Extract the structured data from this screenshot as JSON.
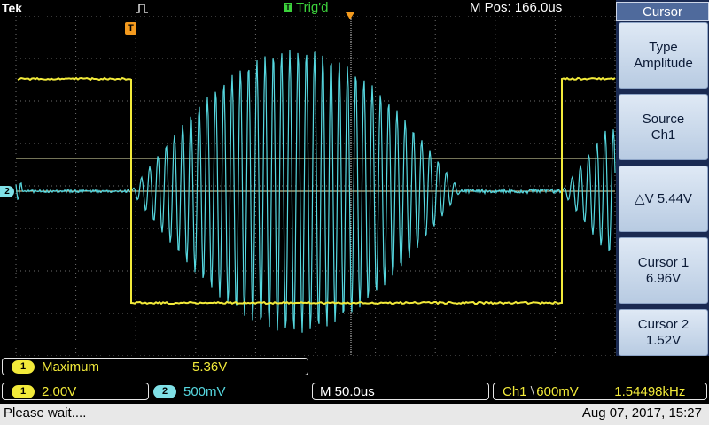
{
  "header": {
    "brand": "Tek",
    "trigger_status": "Trig'd",
    "trigger_status_badge": "T",
    "m_pos": "M Pos: 166.0us",
    "trigger_position_badge": "T",
    "ch2_marker": "2"
  },
  "sidebar": {
    "title": "Cursor",
    "buttons": [
      {
        "line1": "Type",
        "line2": "Amplitude"
      },
      {
        "line1": "Source",
        "line2": "Ch1"
      },
      {
        "line1": "△V 5.44V",
        "line2": ""
      },
      {
        "line1": "Cursor 1",
        "line2": "6.96V"
      },
      {
        "line1": "Cursor 2",
        "line2": "1.52V"
      }
    ]
  },
  "measurement": {
    "channel": "1",
    "name": "Maximum",
    "value": "5.36V"
  },
  "settings": {
    "ch1_badge": "1",
    "ch1_scale": "2.00V",
    "ch2_badge": "2",
    "ch2_scale": "500mV",
    "timebase": "M 50.0us",
    "trigger_source": "Ch1",
    "trigger_slope": "⧵",
    "trigger_level": "600mV",
    "frequency": "1.54498kHz"
  },
  "status_bar": {
    "message": "Please wait....",
    "datetime": "Aug 07, 2017, 15:27"
  },
  "colors": {
    "ch1": "#f2ea3a",
    "ch2": "#56d8e0",
    "trigger": "#f39a1e",
    "grid": "#6e6e6e",
    "menu_bg": "#1a2a52"
  }
}
